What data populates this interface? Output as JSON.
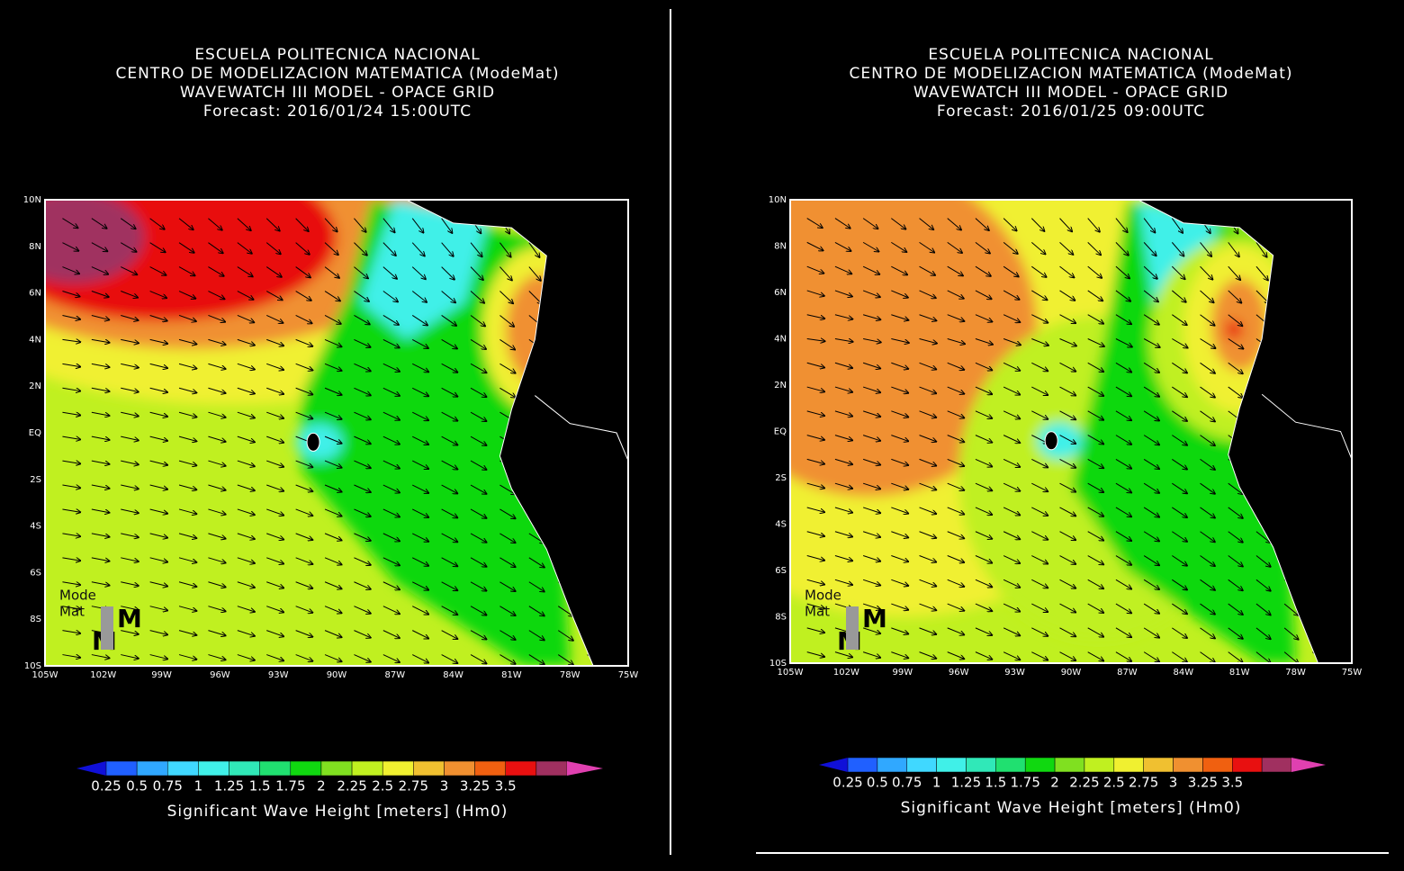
{
  "panels": [
    {
      "title_lines": [
        "ESCUELA POLITECNICA NACIONAL",
        "CENTRO DE MODELIZACION MATEMATICA (ModeMat)",
        "WAVEWATCH III MODEL - OPACE GRID",
        "Forecast: 2016/01/24 15:00UTC"
      ],
      "lat_labels": [
        "10N",
        "8N",
        "6N",
        "4N",
        "2N",
        "EQ",
        "2S",
        "4S",
        "6S",
        "8S",
        "10S"
      ],
      "lon_labels": [
        "105W",
        "102W",
        "99W",
        "96W",
        "93W",
        "90W",
        "87W",
        "84W",
        "81W",
        "78W",
        "75W"
      ],
      "logo": {
        "line1": "Mode",
        "line2": "Mat",
        "mark": "M"
      },
      "colorbar": {
        "labels": [
          "0.25",
          "0.5",
          "0.75",
          "1",
          "1.25",
          "1.5",
          "1.75",
          "2",
          "2.25",
          "2.5",
          "2.75",
          "3",
          "3.25",
          "3.5"
        ],
        "colors": [
          "#1010d8",
          "#2060ff",
          "#30a8ff",
          "#40d8ff",
          "#40f0e8",
          "#30e8b8",
          "#20e070",
          "#10d810",
          "#80e020",
          "#c0f020",
          "#f0f030",
          "#f0c030",
          "#f09030",
          "#f06010",
          "#e81010",
          "#a03060",
          "#e040b0"
        ],
        "label": "Significant Wave Height [meters] (Hm0)"
      }
    },
    {
      "title_lines": [
        "ESCUELA POLITECNICA NACIONAL",
        "CENTRO DE MODELIZACION MATEMATICA (ModeMat)",
        "WAVEWATCH III MODEL - OPACE GRID",
        "Forecast: 2016/01/25 09:00UTC"
      ],
      "lat_labels": [
        "10N",
        "8N",
        "6N",
        "4N",
        "2N",
        "EQ",
        "2S",
        "4S",
        "6S",
        "8S",
        "10S"
      ],
      "lon_labels": [
        "105W",
        "102W",
        "99W",
        "96W",
        "93W",
        "90W",
        "87W",
        "84W",
        "81W",
        "78W",
        "75W"
      ],
      "logo": {
        "line1": "Mode",
        "line2": "Mat",
        "mark": "M"
      },
      "colorbar": {
        "labels": [
          "0.25",
          "0.5",
          "0.75",
          "1",
          "1.25",
          "1.5",
          "1.75",
          "2",
          "2.25",
          "2.5",
          "2.75",
          "3",
          "3.25",
          "3.5"
        ],
        "colors": [
          "#1010d8",
          "#2060ff",
          "#30a8ff",
          "#40d8ff",
          "#40f0e8",
          "#30e8b8",
          "#20e070",
          "#10d810",
          "#80e020",
          "#c0f020",
          "#f0f030",
          "#f0c030",
          "#f09030",
          "#f06010",
          "#e81010",
          "#a03060",
          "#e040b0"
        ],
        "label": "Significant Wave Height [meters] (Hm0)"
      }
    }
  ]
}
